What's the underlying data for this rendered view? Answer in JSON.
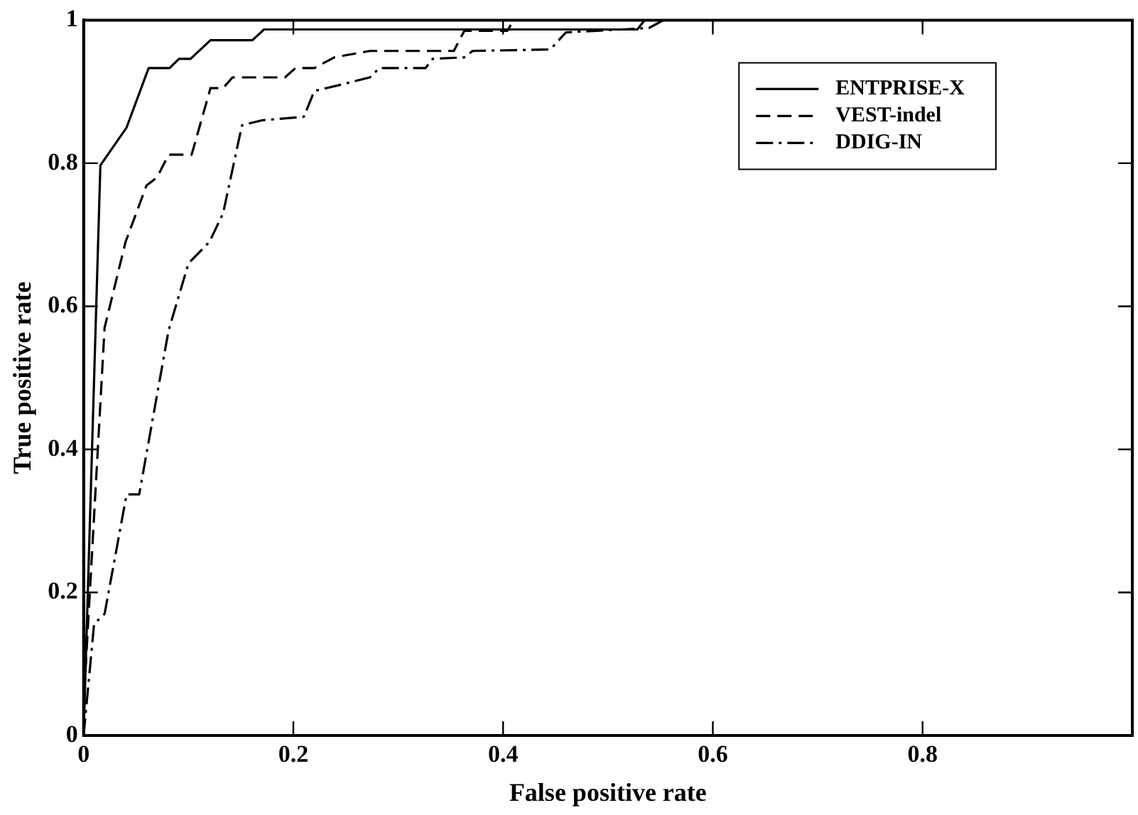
{
  "chart_data": {
    "type": "line",
    "xlabel": "False positive rate",
    "ylabel": "True positive rate",
    "xlim": [
      0,
      1
    ],
    "ylim": [
      0,
      1
    ],
    "xticks": [
      0,
      0.2,
      0.4,
      0.6,
      0.8,
      {
        "value": 1,
        "label": null
      }
    ],
    "yticks": [
      0,
      0.2,
      0.4,
      0.6,
      0.8,
      1
    ],
    "grid": false,
    "legend": "top right",
    "marker": "none",
    "series": [
      {
        "name": "ENTPRISE-X",
        "color": "#000000",
        "line_style": "solid",
        "x": [
          0,
          0.016,
          0.041,
          0.062,
          0.082,
          0.091,
          0.102,
          0.121,
          0.161,
          0.172,
          0.528,
          0.535
        ],
        "values": [
          0,
          0.797,
          0.85,
          0.933,
          0.933,
          0.946,
          0.946,
          0.972,
          0.972,
          0.987,
          0.987,
          1
        ]
      },
      {
        "name": "VEST-indel",
        "color": "#000000",
        "line_style": "dashed",
        "x": [
          0,
          0.001,
          0.02,
          0.04,
          0.06,
          0.07,
          0.081,
          0.103,
          0.121,
          0.133,
          0.142,
          0.192,
          0.202,
          0.22,
          0.239,
          0.273,
          0.353,
          0.363,
          0.404,
          0.41
        ],
        "values": [
          0,
          0.07,
          0.57,
          0.69,
          0.769,
          0.78,
          0.812,
          0.812,
          0.905,
          0.905,
          0.92,
          0.92,
          0.933,
          0.933,
          0.948,
          0.957,
          0.957,
          0.985,
          0.985,
          1
        ]
      },
      {
        "name": "DDIG-IN",
        "color": "#000000",
        "line_style": "dashdot",
        "x": [
          0,
          0.01,
          0.02,
          0.041,
          0.053,
          0.081,
          0.1,
          0.12,
          0.133,
          0.151,
          0.17,
          0.21,
          0.22,
          0.243,
          0.273,
          0.282,
          0.326,
          0.333,
          0.363,
          0.371,
          0.445,
          0.46,
          0.539,
          0.553
        ],
        "values": [
          0,
          0.156,
          0.17,
          0.337,
          0.337,
          0.566,
          0.66,
          0.69,
          0.73,
          0.853,
          0.86,
          0.865,
          0.901,
          0.909,
          0.92,
          0.933,
          0.933,
          0.946,
          0.948,
          0.957,
          0.959,
          0.983,
          0.989,
          1
        ]
      }
    ]
  }
}
